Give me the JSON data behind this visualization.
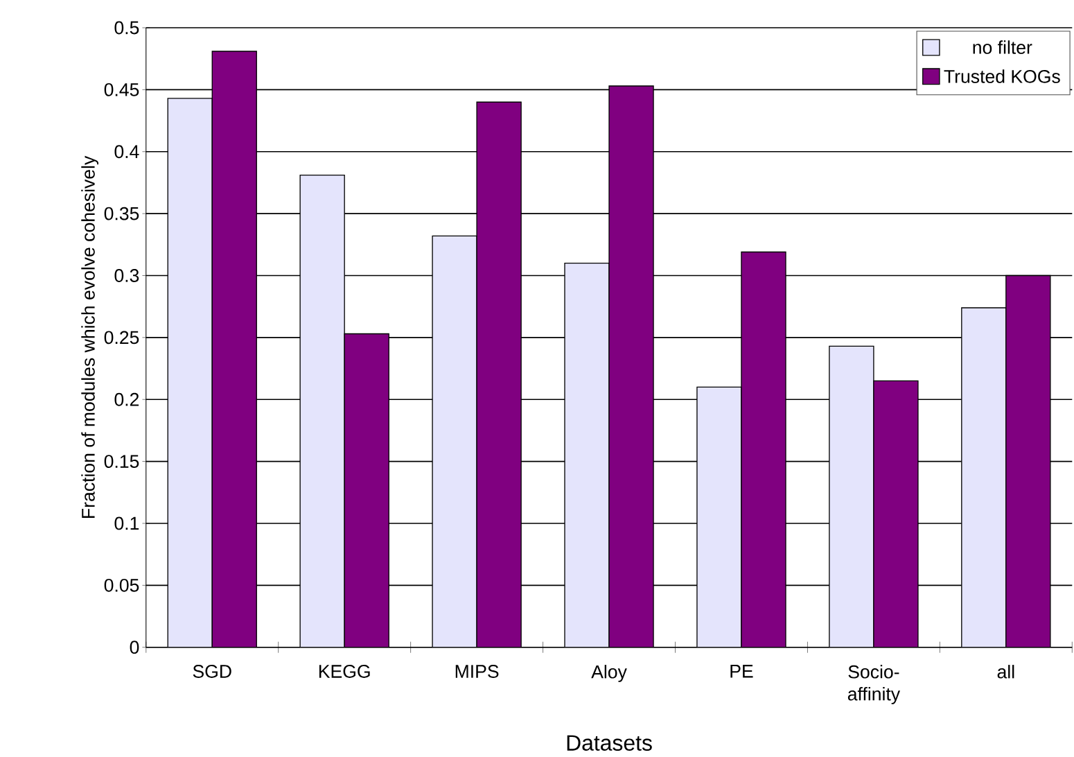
{
  "chart_data": {
    "type": "bar",
    "xlabel": "Datasets",
    "ylabel": "Fraction of modules which evolve cohesively",
    "categories": [
      "SGD",
      "KEGG",
      "MIPS",
      "Aloy",
      "PE",
      "Socio-affinity",
      "all"
    ],
    "series": [
      {
        "name": "no filter",
        "color": "#e4e4fc",
        "values": [
          0.443,
          0.381,
          0.332,
          0.31,
          0.21,
          0.243,
          0.274
        ]
      },
      {
        "name": "Trusted KOGs",
        "color": "#800080",
        "values": [
          0.481,
          0.253,
          0.44,
          0.453,
          0.319,
          0.215,
          0.3
        ]
      }
    ],
    "ylim": [
      0,
      0.5
    ],
    "yticks": [
      0,
      0.05,
      0.1,
      0.15,
      0.2,
      0.25,
      0.3,
      0.35,
      0.4,
      0.45,
      0.5
    ],
    "grid": "y",
    "legend": "top right"
  }
}
